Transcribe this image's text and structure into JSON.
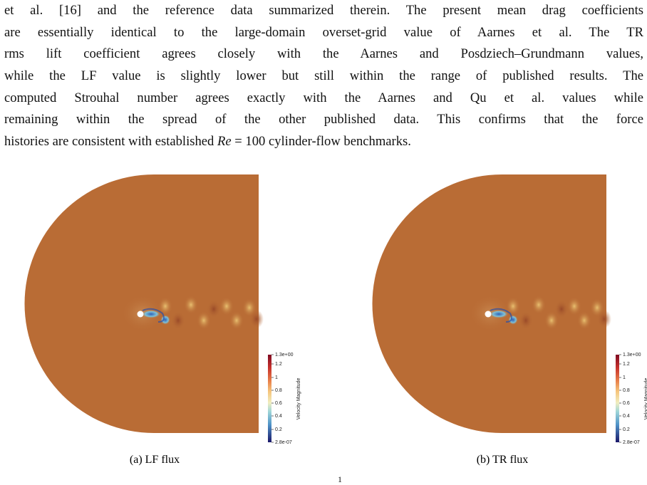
{
  "paragraph": {
    "lines": [
      "et al. [16] and the reference data summarized therein. The present mean drag coefficients",
      "are essentially identical to the large-domain overset-grid value of Aarnes et al. The TR",
      "rms lift coefficient agrees closely with the Aarnes and Posdziech–Grundmann values,",
      "while the LF value is slightly lower but still within the range of published results. The",
      "computed Strouhal number agrees exactly with the Aarnes and Qu et al. values while",
      "remaining within the spread of the other published data. This confirms that the force"
    ],
    "last_line": {
      "before": "histories are consistent with established ",
      "math": "Re",
      "after": " = 100 cylinder-flow benchmarks."
    }
  },
  "figures": [
    {
      "caption": "(a) LF flux",
      "colorbar": {
        "title": "Velocity Magnitude",
        "labels": [
          "1.3e+00",
          "1.2",
          "1",
          "0.8",
          "0.6",
          "0.4",
          "0.2",
          "2.8e-07"
        ]
      }
    },
    {
      "caption": "(b) TR flux",
      "colorbar": {
        "title": "Velocity Magnitude",
        "labels": [
          "1.3e+00",
          "1.2",
          "1",
          "0.8",
          "0.6",
          "0.4",
          "0.2",
          "2.8e-07"
        ]
      }
    }
  ],
  "page_number": "1"
}
